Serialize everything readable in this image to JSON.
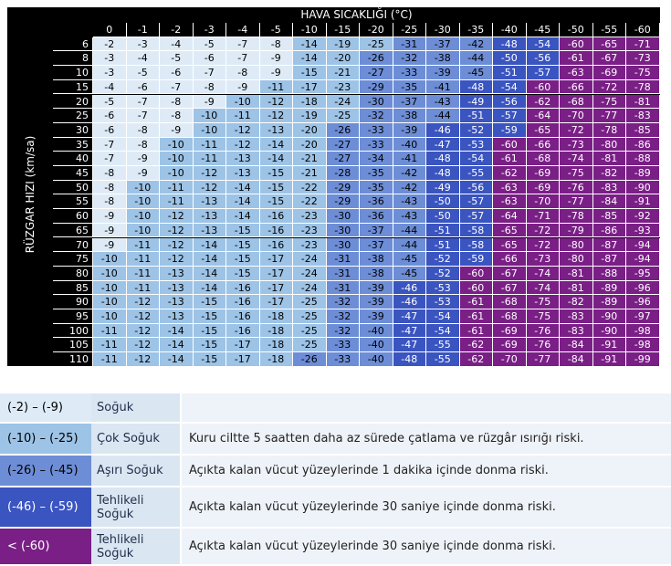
{
  "header_title": "HAVA SICAKLIĞI (°C)",
  "y_label": "RÜZGAR HIZI (km/sa)",
  "temperatures": [
    "0",
    "-1",
    "-2",
    "-3",
    "-4",
    "-5",
    "-10",
    "-15",
    "-20",
    "-25",
    "-30",
    "-35",
    "-40",
    "-45",
    "-50",
    "-55",
    "-60"
  ],
  "rows": [
    {
      "wind": "6",
      "values": [
        -2,
        -3,
        -4,
        -5,
        -7,
        -8,
        -14,
        -19,
        -25,
        -31,
        -37,
        -42,
        -48,
        -54,
        -60,
        -65,
        -71
      ]
    },
    {
      "wind": "8",
      "values": [
        -3,
        -4,
        -5,
        -6,
        -7,
        -9,
        -14,
        -20,
        -26,
        -32,
        -38,
        -44,
        -50,
        -56,
        -61,
        -67,
        -73
      ]
    },
    {
      "wind": "10",
      "values": [
        -3,
        -5,
        -6,
        -7,
        -8,
        -9,
        -15,
        -21,
        -27,
        -33,
        -39,
        -45,
        -51,
        -57,
        -63,
        -69,
        -75
      ]
    },
    {
      "wind": "15",
      "values": [
        -4,
        -6,
        -7,
        -8,
        -9,
        -11,
        -17,
        -23,
        -29,
        -35,
        -41,
        -48,
        -54,
        -60,
        -66,
        -72,
        -78
      ]
    },
    {
      "wind": "20",
      "values": [
        -5,
        -7,
        -8,
        -9,
        -10,
        -12,
        -18,
        -24,
        -30,
        -37,
        -43,
        -49,
        -56,
        -62,
        -68,
        -75,
        -81
      ]
    },
    {
      "wind": "25",
      "values": [
        -6,
        -7,
        -8,
        -10,
        -11,
        -12,
        -19,
        -25,
        -32,
        -38,
        -44,
        -51,
        -57,
        -64,
        -70,
        -77,
        -83
      ]
    },
    {
      "wind": "30",
      "values": [
        -6,
        -8,
        -9,
        -10,
        -12,
        -13,
        -20,
        -26,
        -33,
        -39,
        -46,
        -52,
        -59,
        -65,
        -72,
        -78,
        -85
      ]
    },
    {
      "wind": "35",
      "values": [
        -7,
        -8,
        -10,
        -11,
        -12,
        -14,
        -20,
        -27,
        -33,
        -40,
        -47,
        -53,
        -60,
        -66,
        -73,
        -80,
        -86
      ]
    },
    {
      "wind": "40",
      "values": [
        -7,
        -9,
        -10,
        -11,
        -13,
        -14,
        -21,
        -27,
        -34,
        -41,
        -48,
        -54,
        -61,
        -68,
        -74,
        -81,
        -88
      ]
    },
    {
      "wind": "45",
      "values": [
        -8,
        -9,
        -10,
        -12,
        -13,
        -15,
        -21,
        -28,
        -35,
        -42,
        -48,
        -55,
        -62,
        -69,
        -75,
        -82,
        -89
      ]
    },
    {
      "wind": "50",
      "values": [
        -8,
        -10,
        -11,
        -12,
        -14,
        -15,
        -22,
        -29,
        -35,
        -42,
        -49,
        -56,
        -63,
        -69,
        -76,
        -83,
        -90
      ]
    },
    {
      "wind": "55",
      "values": [
        -8,
        -10,
        -11,
        -13,
        -14,
        -15,
        -22,
        -29,
        -36,
        -43,
        -50,
        -57,
        -63,
        -70,
        -77,
        -84,
        -91
      ]
    },
    {
      "wind": "60",
      "values": [
        -9,
        -10,
        -12,
        -13,
        -14,
        -16,
        -23,
        -30,
        -36,
        -43,
        -50,
        -57,
        -64,
        -71,
        -78,
        -85,
        -92
      ]
    },
    {
      "wind": "65",
      "values": [
        -9,
        -10,
        -12,
        -13,
        -15,
        -16,
        -23,
        -30,
        -37,
        -44,
        -51,
        -58,
        -65,
        -72,
        -79,
        -86,
        -93
      ]
    },
    {
      "wind": "70",
      "values": [
        -9,
        -11,
        -12,
        -14,
        -15,
        -16,
        -23,
        -30,
        -37,
        -44,
        -51,
        -58,
        -65,
        -72,
        -80,
        -87,
        -94
      ]
    },
    {
      "wind": "75",
      "values": [
        -10,
        -11,
        -12,
        -14,
        -15,
        -17,
        -24,
        -31,
        -38,
        -45,
        -52,
        -59,
        -66,
        -73,
        -80,
        -87,
        -94
      ]
    },
    {
      "wind": "80",
      "values": [
        -10,
        -11,
        -13,
        -14,
        -15,
        -17,
        -24,
        -31,
        -38,
        -45,
        -52,
        -60,
        -67,
        -74,
        -81,
        -88,
        -95
      ]
    },
    {
      "wind": "85",
      "values": [
        -10,
        -11,
        -13,
        -14,
        -16,
        -17,
        -24,
        -31,
        -39,
        -46,
        -53,
        -60,
        -67,
        -74,
        -81,
        -89,
        -96
      ]
    },
    {
      "wind": "90",
      "values": [
        -10,
        -12,
        -13,
        -15,
        -16,
        -17,
        -25,
        -32,
        -39,
        -46,
        -53,
        -61,
        -68,
        -75,
        -82,
        -89,
        -96
      ]
    },
    {
      "wind": "95",
      "values": [
        -10,
        -12,
        -13,
        -15,
        -16,
        -18,
        -25,
        -32,
        -39,
        -47,
        -54,
        -61,
        -68,
        -75,
        -83,
        -90,
        -97
      ]
    },
    {
      "wind": "100",
      "values": [
        -11,
        -12,
        -14,
        -15,
        -16,
        -18,
        -25,
        -32,
        -40,
        -47,
        -54,
        -61,
        -69,
        -76,
        -83,
        -90,
        -98
      ]
    },
    {
      "wind": "105",
      "values": [
        -11,
        -12,
        -14,
        -15,
        -17,
        -18,
        -25,
        -33,
        -40,
        -47,
        -55,
        -62,
        -69,
        -76,
        -84,
        -91,
        -98
      ]
    },
    {
      "wind": "110",
      "values": [
        -11,
        -12,
        -14,
        -15,
        -17,
        -18,
        -26,
        -33,
        -40,
        -48,
        -55,
        -62,
        -70,
        -77,
        -84,
        -91,
        -99
      ]
    }
  ],
  "colors": {
    "c1": "#deebf7",
    "c2": "#9dc3e6",
    "c3": "#6d8dd6",
    "c4": "#3a54c0",
    "c5": "#7a1f86"
  },
  "legend": [
    {
      "range": "(-2) – (-9)",
      "name": "Soğuk",
      "desc": "",
      "color": "#deebf7",
      "text_color": "#000000"
    },
    {
      "range": "(-10) – (-25)",
      "name": "Çok Soğuk",
      "desc": "Kuru ciltte 5 saatten daha az sürede çatlama ve rüzgâr ısırığı riski.",
      "color": "#9dc3e6",
      "text_color": "#000000"
    },
    {
      "range": "(-26) – (-45)",
      "name": "Aşırı Soğuk",
      "desc": "Açıkta kalan vücut yüzeylerinde 1 dakika içinde donma riski.",
      "color": "#6d8dd6",
      "text_color": "#000000"
    },
    {
      "range": "(-46) – (-59)",
      "name": "Tehlikeli Soğuk",
      "desc": "Açıkta kalan vücut yüzeylerinde 30 saniye içinde donma riski.",
      "color": "#3a54c0",
      "text_color": "#ffffff"
    },
    {
      "range": "< (-60)",
      "name": "Tehlikeli Soğuk",
      "desc": "Açıkta kalan vücut yüzeylerinde 30 saniye içinde donma riski.",
      "color": "#7a1f86",
      "text_color": "#ffffff"
    }
  ]
}
